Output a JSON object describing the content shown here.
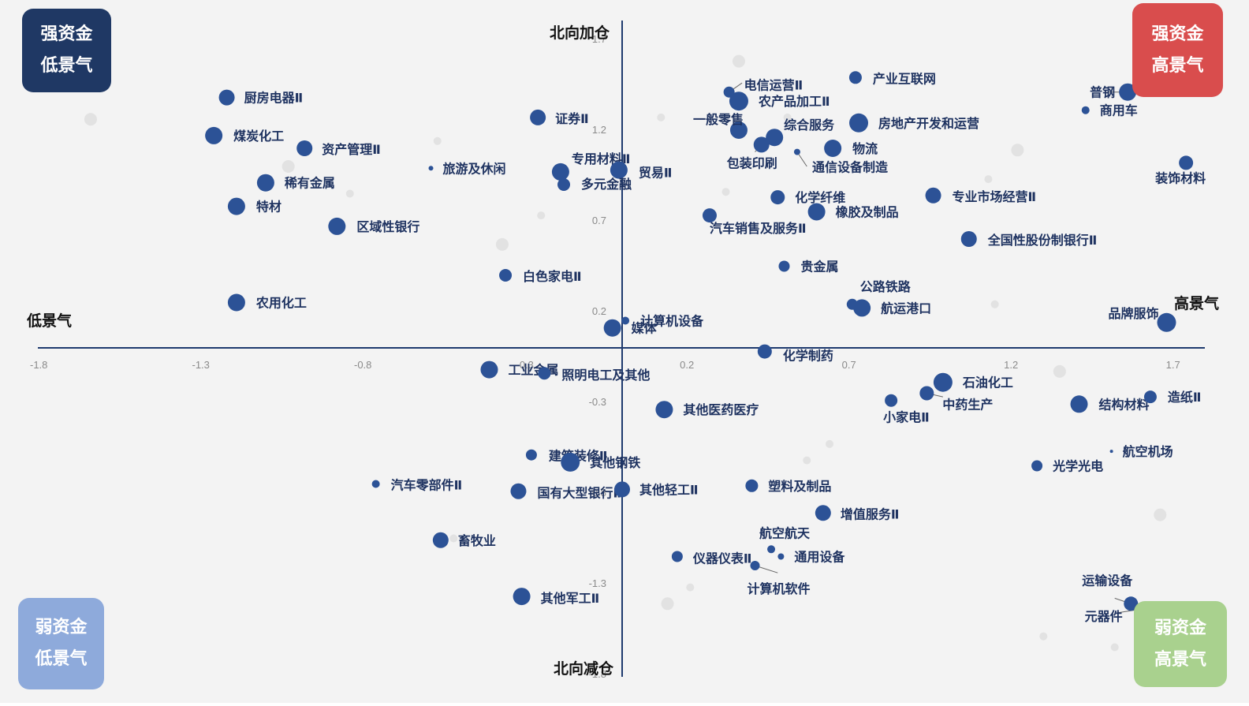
{
  "colors": {
    "background": "#f3f3f3",
    "axis": "#1e3a6e",
    "point": "#2c5296",
    "label": "#1e3260",
    "grey_point": "#dddddd",
    "tick": "#8a8a8a",
    "strong_low": "#1f3864",
    "strong_high": "#d94d4d",
    "weak_low": "#8eaadb",
    "weak_high": "#a9d18e"
  },
  "quadrants": {
    "top_left": {
      "line1": "强资金",
      "line2": "低景气"
    },
    "top_right": {
      "line1": "强资金",
      "line2": "高景气"
    },
    "bottom_left": {
      "line1": "弱资金",
      "line2": "低景气"
    },
    "bottom_right": {
      "line1": "弱资金",
      "line2": "高景气"
    }
  },
  "chart_data": {
    "type": "scatter",
    "axis_labels": {
      "top": "北向加仓",
      "bottom": "北向减仓",
      "left": "低景气",
      "right": "高景气"
    },
    "xlim": [
      -1.8,
      1.8
    ],
    "ylim": [
      -1.8,
      1.7
    ],
    "x_ticks": [
      "-1.8",
      "-1.3",
      "-0.8",
      "-0.3",
      "0.2",
      "0.7",
      "1.2",
      "1.7"
    ],
    "y_ticks": [
      "1.7",
      "1.2",
      "0.7",
      "0.2",
      "-0.3",
      "-0.8",
      "-1.3",
      "-1.8"
    ],
    "points": [
      {
        "label": "厨房电器Ⅱ",
        "x": -1.22,
        "y": 1.38,
        "size": 10
      },
      {
        "label": "证券Ⅱ",
        "x": -0.26,
        "y": 1.27,
        "size": 10
      },
      {
        "label": "煤炭化工",
        "x": -1.26,
        "y": 1.17,
        "size": 11
      },
      {
        "label": "资产管理Ⅱ",
        "x": -0.98,
        "y": 1.1,
        "size": 10
      },
      {
        "label": "旅游及休闲",
        "x": -0.59,
        "y": 0.99,
        "size": 3
      },
      {
        "label": "稀有金属",
        "x": -1.1,
        "y": 0.91,
        "size": 11
      },
      {
        "label": "特材",
        "x": -1.19,
        "y": 0.78,
        "size": 11
      },
      {
        "label": "区域性银行",
        "x": -0.88,
        "y": 0.67,
        "size": 11
      },
      {
        "label": "农用化工",
        "x": -1.19,
        "y": 0.25,
        "size": 11
      },
      {
        "label": "专用材料Ⅱ",
        "x": -0.19,
        "y": 0.97,
        "size": 11
      },
      {
        "label": "贸易Ⅱ",
        "x": -0.01,
        "y": 0.98,
        "size": 11
      },
      {
        "label": "多元金融",
        "x": -0.18,
        "y": 0.9,
        "size": 8
      },
      {
        "label": "白色家电Ⅱ",
        "x": -0.36,
        "y": 0.4,
        "size": 8
      },
      {
        "label": "计算机设备",
        "x": 0.01,
        "y": 0.15,
        "size": 5
      },
      {
        "label": "媒体",
        "x": -0.03,
        "y": 0.11,
        "size": 11
      },
      {
        "label": "电信运营Ⅱ",
        "x": 0.33,
        "y": 1.41,
        "size": 7
      },
      {
        "label": "农产品加工Ⅱ",
        "x": 0.36,
        "y": 1.36,
        "size": 12
      },
      {
        "label": "产业互联网",
        "x": 0.72,
        "y": 1.49,
        "size": 8
      },
      {
        "label": "普钢",
        "x": 1.56,
        "y": 1.41,
        "size": 11
      },
      {
        "label": "商用车",
        "x": 1.43,
        "y": 1.31,
        "size": 5
      },
      {
        "label": "一般零售",
        "x": 0.36,
        "y": 1.2,
        "size": 11
      },
      {
        "label": "综合服务",
        "x": 0.47,
        "y": 1.16,
        "size": 11
      },
      {
        "label": "房地产开发和运营",
        "x": 0.73,
        "y": 1.24,
        "size": 12
      },
      {
        "label": "包装印刷",
        "x": 0.43,
        "y": 1.12,
        "size": 10
      },
      {
        "label": "物流",
        "x": 0.65,
        "y": 1.1,
        "size": 11
      },
      {
        "label": "通信设备制造",
        "x": 0.54,
        "y": 1.08,
        "size": 4
      },
      {
        "label": "装饰材料",
        "x": 1.74,
        "y": 1.02,
        "size": 9
      },
      {
        "label": "化学纤维",
        "x": 0.48,
        "y": 0.83,
        "size": 9
      },
      {
        "label": "专业市场经营Ⅱ",
        "x": 0.96,
        "y": 0.84,
        "size": 10
      },
      {
        "label": "橡胶及制品",
        "x": 0.6,
        "y": 0.75,
        "size": 11
      },
      {
        "label": "汽车销售及服务Ⅱ",
        "x": 0.27,
        "y": 0.73,
        "size": 9
      },
      {
        "label": "全国性股份制银行Ⅱ",
        "x": 1.07,
        "y": 0.6,
        "size": 10
      },
      {
        "label": "贵金属",
        "x": 0.5,
        "y": 0.45,
        "size": 7
      },
      {
        "label": "公路铁路",
        "x": 0.71,
        "y": 0.24,
        "size": 7
      },
      {
        "label": "航运港口",
        "x": 0.74,
        "y": 0.22,
        "size": 11
      },
      {
        "label": "品牌服饰",
        "x": 1.68,
        "y": 0.14,
        "size": 12
      },
      {
        "label": "化学制药",
        "x": 0.44,
        "y": -0.02,
        "size": 9
      },
      {
        "label": "工业金属",
        "x": -0.41,
        "y": -0.12,
        "size": 11
      },
      {
        "label": "照明电工及其他",
        "x": -0.24,
        "y": -0.14,
        "size": 8
      },
      {
        "label": "其他医药医疗",
        "x": 0.13,
        "y": -0.34,
        "size": 11
      },
      {
        "label": "石油化工",
        "x": 0.99,
        "y": -0.19,
        "size": 12
      },
      {
        "label": "中药生产",
        "x": 0.94,
        "y": -0.25,
        "size": 9
      },
      {
        "label": "小家电Ⅱ",
        "x": 0.83,
        "y": -0.29,
        "size": 8
      },
      {
        "label": "结构材料",
        "x": 1.41,
        "y": -0.31,
        "size": 11
      },
      {
        "label": "造纸Ⅱ",
        "x": 1.63,
        "y": -0.27,
        "size": 8
      },
      {
        "label": "航空机场",
        "x": 1.51,
        "y": -0.57,
        "size": 2
      },
      {
        "label": "光学光电",
        "x": 1.28,
        "y": -0.65,
        "size": 7
      },
      {
        "label": "建筑装修Ⅱ",
        "x": -0.28,
        "y": -0.59,
        "size": 7
      },
      {
        "label": "其他钢铁",
        "x": -0.16,
        "y": -0.63,
        "size": 12
      },
      {
        "label": "汽车零部件Ⅱ",
        "x": -0.76,
        "y": -0.75,
        "size": 5
      },
      {
        "label": "国有大型银行Ⅱ",
        "x": -0.32,
        "y": -0.79,
        "size": 10
      },
      {
        "label": "其他轻工Ⅱ",
        "x": 0,
        "y": -0.78,
        "size": 10
      },
      {
        "label": "塑料及制品",
        "x": 0.4,
        "y": -0.76,
        "size": 8
      },
      {
        "label": "增值服务Ⅱ",
        "x": 0.62,
        "y": -0.91,
        "size": 10
      },
      {
        "label": "畜牧业",
        "x": -0.56,
        "y": -1.06,
        "size": 10
      },
      {
        "label": "航空航天",
        "x": 0.46,
        "y": -1.11,
        "size": 5
      },
      {
        "label": "仪器仪表Ⅱ",
        "x": 0.17,
        "y": -1.15,
        "size": 7
      },
      {
        "label": "通用设备",
        "x": 0.49,
        "y": -1.15,
        "size": 4
      },
      {
        "label": "计算机软件",
        "x": 0.41,
        "y": -1.2,
        "size": 6
      },
      {
        "label": "其他军工Ⅱ",
        "x": -0.31,
        "y": -1.37,
        "size": 11
      },
      {
        "label": "运输设备",
        "x": 1.57,
        "y": -1.41,
        "size": 9
      },
      {
        "label": "元器件",
        "x": 1.6,
        "y": -1.44,
        "size": 8
      }
    ]
  }
}
